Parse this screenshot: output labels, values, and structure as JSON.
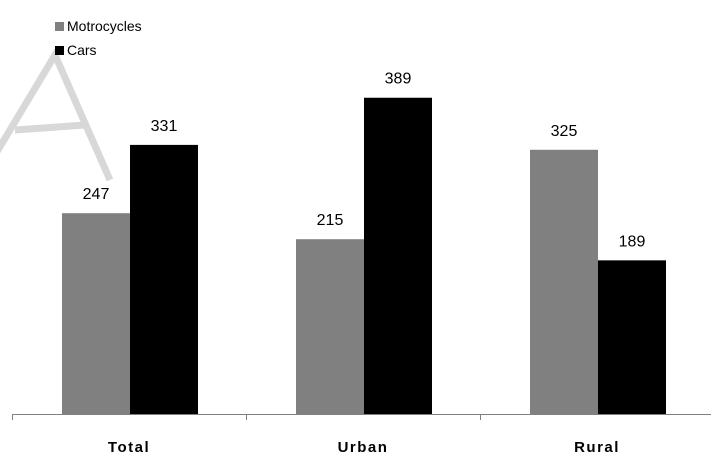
{
  "chart_data": {
    "type": "bar",
    "categories": [
      "Total",
      "Urban",
      "Rural"
    ],
    "series": [
      {
        "name": "Motrocycles",
        "values": [
          247,
          215,
          325
        ],
        "color": "#808080"
      },
      {
        "name": "Cars",
        "values": [
          331,
          389,
          189
        ],
        "color": "#000000"
      }
    ],
    "ylim": [
      0,
      450
    ],
    "grid": false,
    "legend_position": "top-left",
    "watermark": "A"
  }
}
